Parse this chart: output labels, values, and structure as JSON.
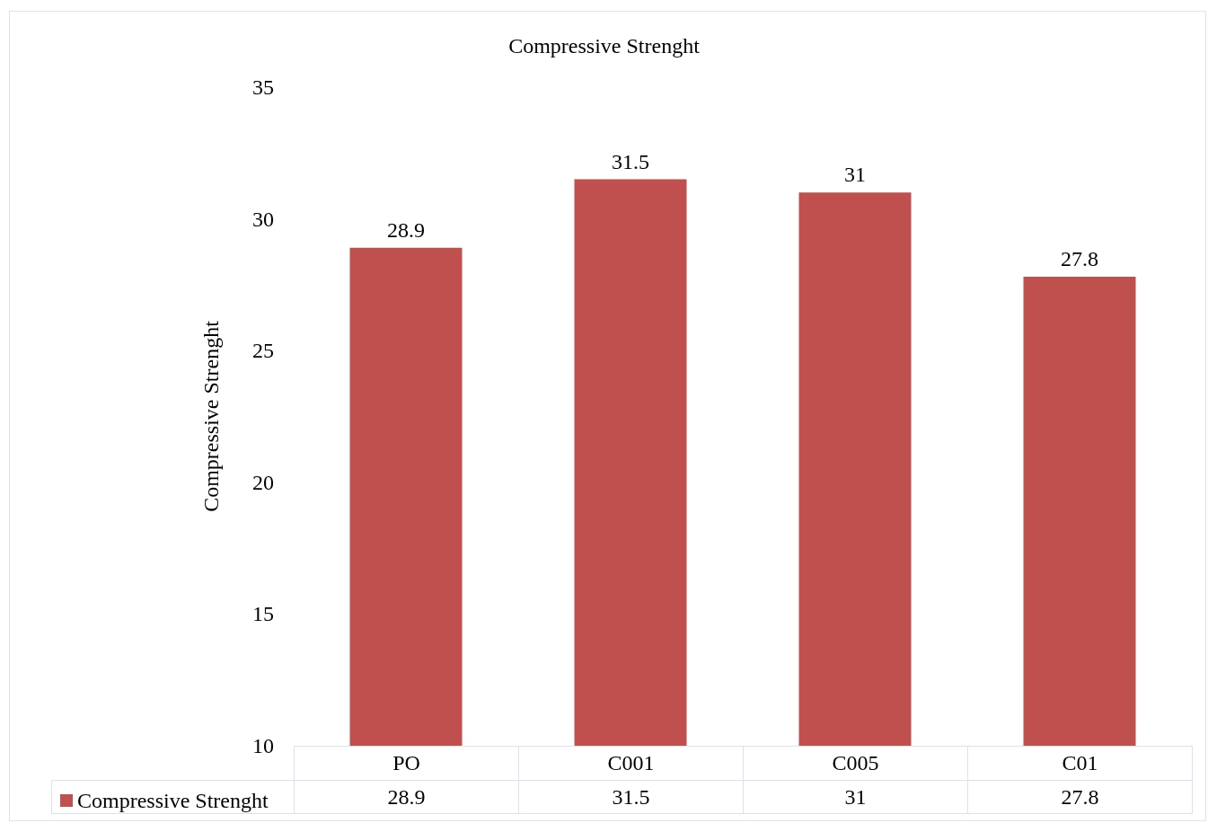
{
  "chart_data": {
    "type": "bar",
    "title": "Compressive Strenght",
    "ylabel": "Compressive Strenght",
    "categories": [
      "PO",
      "C001",
      "C005",
      "C01"
    ],
    "series": [
      {
        "name": "Compressive Strenght",
        "color": "#c0504d",
        "values": [
          28.9,
          31.5,
          31,
          27.8
        ],
        "value_labels": [
          "28.9",
          "31.5",
          "31",
          "27.8"
        ]
      }
    ],
    "annotations": [
      "28.9",
      "31.5",
      "31",
      "27.8"
    ],
    "ylim": [
      10,
      35
    ],
    "yticks": [
      10,
      15,
      20,
      25,
      30,
      35
    ],
    "grid": false,
    "legend": "bottom left"
  }
}
